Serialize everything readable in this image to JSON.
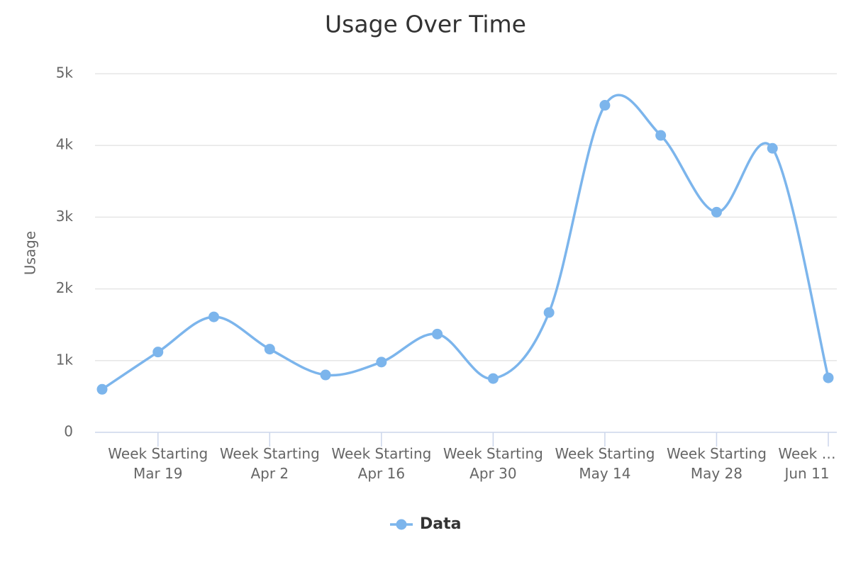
{
  "chart_data": {
    "type": "line",
    "title": "Usage Over Time",
    "y_label": "Usage",
    "categories": [
      null,
      "Week Starting Mar 19",
      null,
      "Week Starting Apr 2",
      null,
      "Week Starting Apr 16",
      null,
      "Week Starting Apr 30",
      null,
      "Week Starting May 14",
      null,
      "Week Starting May 28",
      null,
      "Week … Jun 11"
    ],
    "series": [
      {
        "name": "Data",
        "color": "#7cb5ec",
        "values": [
          600,
          1120,
          1610,
          1160,
          800,
          980,
          1370,
          750,
          1670,
          4560,
          4140,
          3070,
          3960,
          760
        ]
      }
    ],
    "ylim": [
      0,
      5000
    ],
    "yticks": [
      0,
      {
        "value": 1000,
        "label": "1k"
      },
      {
        "value": 2000,
        "label": "2k"
      },
      {
        "value": 3000,
        "label": "3k"
      },
      {
        "value": 4000,
        "label": "4k"
      },
      {
        "value": 5000,
        "label": "5k"
      }
    ],
    "grid": true,
    "legend": "bottom"
  }
}
